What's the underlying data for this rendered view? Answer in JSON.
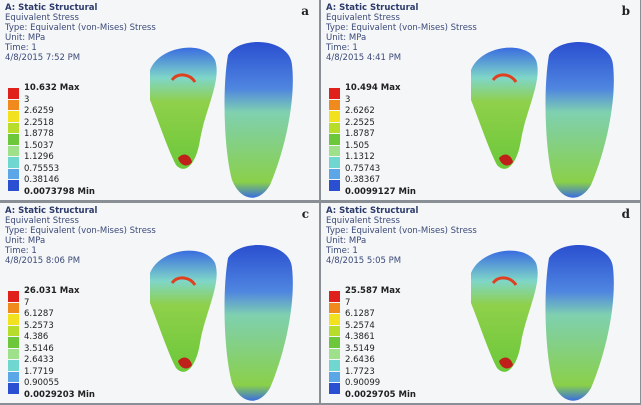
{
  "panels": [
    {
      "letter": "a",
      "lines": [
        "A: Static Structural",
        "Equivalent Stress",
        "Type: Equivalent (von-Mises) Stress",
        "Unit: MPa",
        "Time: 1",
        "4/8/2015 7:52 PM"
      ],
      "legend": [
        "10.632 Max",
        "3",
        "2.6259",
        "2.2518",
        "1.8778",
        "1.5037",
        "1.1296",
        "0.75553",
        "0.38146",
        "0.0073798 Min"
      ]
    },
    {
      "letter": "b",
      "lines": [
        "A: Static Structural",
        "Equivalent Stress",
        "Type: Equivalent (von-Mises) Stress",
        "Unit: MPa",
        "Time: 1",
        "4/8/2015 4:41 PM"
      ],
      "legend": [
        "10.494 Max",
        "3",
        "2.6262",
        "2.2525",
        "1.8787",
        "1.505",
        "1.1312",
        "0.75743",
        "0.38367",
        "0.0099127 Min"
      ]
    },
    {
      "letter": "c",
      "lines": [
        "A: Static Structural",
        "Equivalent Stress",
        "Type: Equivalent (von-Mises) Stress",
        "Unit: MPa",
        "Time: 1",
        "4/8/2015 8:06 PM"
      ],
      "legend": [
        "26.031 Max",
        "7",
        "6.1287",
        "5.2573",
        "4.386",
        "3.5146",
        "2.6433",
        "1.7719",
        "0.90055",
        "0.0029203 Min"
      ]
    },
    {
      "letter": "d",
      "lines": [
        "A: Static Structural",
        "Equivalent Stress",
        "Type: Equivalent (von-Mises) Stress",
        "Unit: MPa",
        "Time: 1",
        "4/8/2015 5:05 PM"
      ],
      "legend": [
        "25.587 Max",
        "7",
        "6.1287",
        "5.2574",
        "4.3861",
        "3.5149",
        "2.6436",
        "1.7723",
        "0.90099",
        "0.0029705 Min"
      ]
    }
  ]
}
